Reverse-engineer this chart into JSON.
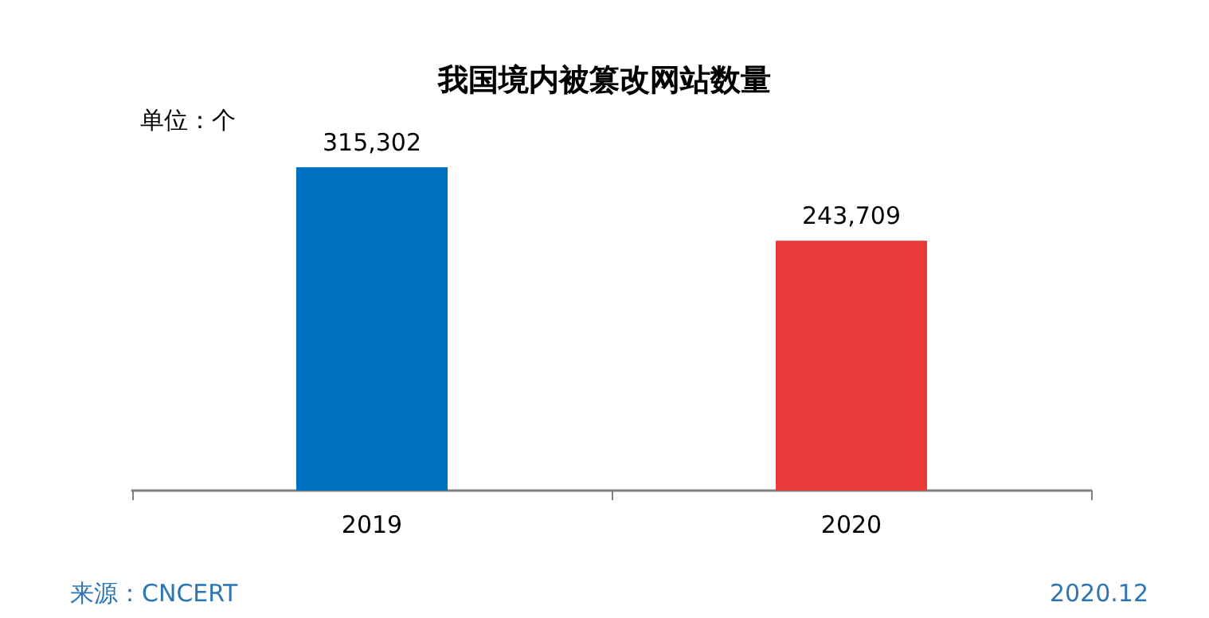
{
  "chart_data": {
    "type": "bar",
    "title": "我国境内被篡改网站数量",
    "categories": [
      "2019",
      "2020"
    ],
    "values": [
      315302,
      243709
    ],
    "colors": [
      "#0070c0",
      "#e93a3a"
    ],
    "value_labels": [
      "315,302",
      "243,709"
    ],
    "annotations": [
      "单位：个",
      "来源：CNCERT",
      "2020.12"
    ]
  }
}
